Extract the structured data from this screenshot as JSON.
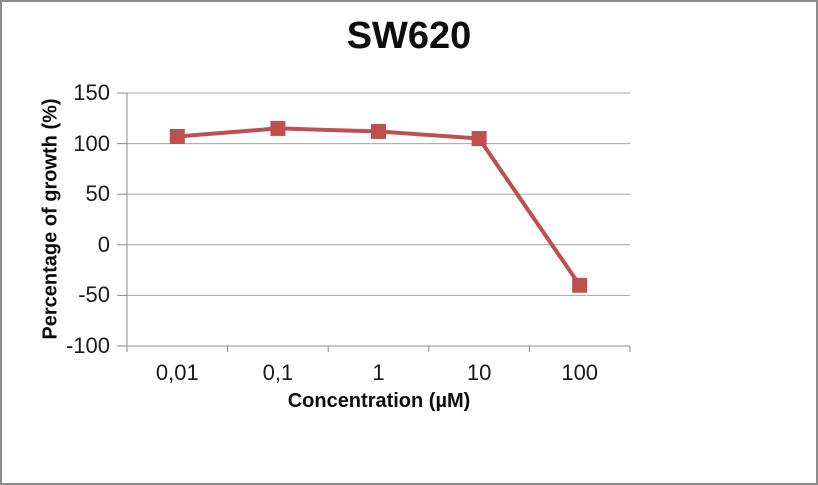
{
  "chart_data": {
    "type": "line",
    "title": "SW620",
    "xlabel": "Concentration (µM)",
    "ylabel": "Percentage of growth (%)",
    "categories": [
      "0,01",
      "0,1",
      "1",
      "10",
      "100"
    ],
    "series": [
      {
        "name": "SW620",
        "values": [
          107,
          115,
          112,
          105,
          -40
        ],
        "color": "#C0504D",
        "marker": "square"
      }
    ],
    "ylim": [
      -100,
      150
    ],
    "yticks": [
      150,
      100,
      50,
      0,
      -50,
      -100
    ],
    "ytick_labels": [
      "150",
      "100",
      "50",
      "0",
      "-50",
      "-100"
    ],
    "grid": "horizontal",
    "legend": "none",
    "colors": {
      "line": "#C0504D",
      "grid": "#A6A6A6",
      "axis": "#8C8C8C",
      "text": "#1A1A1A",
      "frame_border": "#8C8C8C",
      "background": "#FFFFFF"
    }
  }
}
